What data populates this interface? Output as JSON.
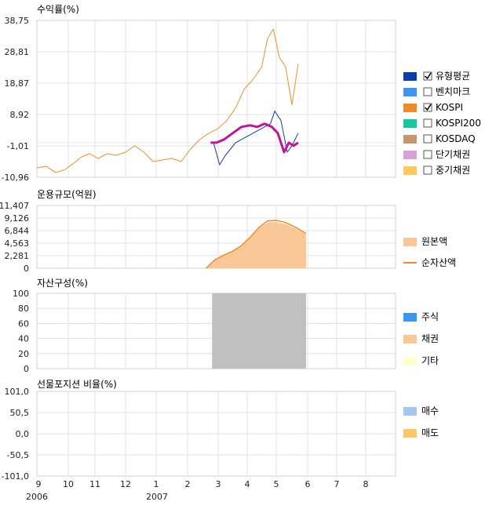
{
  "months": [
    "9",
    "10",
    "11",
    "12",
    "1",
    "2",
    "3",
    "4",
    "5",
    "6",
    "7",
    "8"
  ],
  "years": [
    "2006",
    "2007"
  ],
  "chart_data": [
    {
      "type": "line",
      "title": "수익률(%)",
      "yticks": [
        "38,75",
        "28,81",
        "18,87",
        "8,92",
        "-1,01",
        "-10,96"
      ],
      "ylim": [
        -10.96,
        38.75
      ],
      "legend_placement": "right",
      "legend": [
        {
          "name": "유형평균",
          "color": "#0a3ea8",
          "checkbox": true,
          "checked": true
        },
        {
          "name": "벤치마크",
          "color": "#3c96f0",
          "checkbox": true,
          "checked": false
        },
        {
          "name": "KOSPI",
          "color": "#f08c28",
          "checkbox": true,
          "checked": true
        },
        {
          "name": "KOSPI200",
          "color": "#14c8a0",
          "checkbox": true,
          "checked": false
        },
        {
          "name": "KOSDAQ",
          "color": "#c8966e",
          "checkbox": true,
          "checked": false
        },
        {
          "name": "단기채권",
          "color": "#d7a0d7",
          "checkbox": true,
          "checked": false
        },
        {
          "name": "중기채권",
          "color": "#ffc85a",
          "checkbox": true,
          "checked": false
        }
      ],
      "series": [
        {
          "key": "kospi",
          "color": "#f08c28",
          "width": 1,
          "x": [
            0,
            0.3,
            0.6,
            0.9,
            1.2,
            1.5,
            1.8,
            2.1,
            2.4,
            2.7,
            3,
            3.3,
            3.6,
            3.9,
            4.2,
            4.5,
            4.8,
            5.1,
            5.4,
            5.7,
            6,
            6.3,
            6.6,
            6.9,
            7.2,
            7.5,
            7.7,
            7.9,
            8.1,
            8.3,
            8.5,
            8.7
          ],
          "y": [
            -8,
            -7.5,
            -9.5,
            -8.5,
            -6.5,
            -4.5,
            -3.5,
            -5,
            -3.5,
            -4,
            -3,
            -1,
            -3,
            -6,
            -5.5,
            -5,
            -6,
            -2,
            1,
            3,
            4.5,
            7,
            11,
            17,
            20,
            24,
            33,
            36,
            27,
            24,
            12,
            25
          ]
        },
        {
          "key": "type_avg",
          "color": "#0a3ea8",
          "width": 1,
          "x": [
            5.85,
            6.05,
            6.25,
            6.6,
            6.9,
            7.2,
            7.5,
            7.8,
            7.95,
            8.15,
            8.35,
            8.5,
            8.7
          ],
          "y": [
            0,
            -7,
            -4,
            0,
            1.5,
            3,
            4.5,
            6,
            10,
            7,
            -3,
            -1,
            3
          ]
        },
        {
          "key": "fund",
          "color": "#c0149b",
          "width": 3,
          "x": [
            5.75,
            5.95,
            6.2,
            6.5,
            6.8,
            7.1,
            7.35,
            7.6,
            7.85,
            8.05,
            8.25,
            8.4,
            8.55,
            8.7
          ],
          "y": [
            0,
            0,
            1,
            3,
            5,
            5.5,
            5,
            6,
            5,
            3,
            -3,
            0,
            -1,
            0
          ]
        }
      ]
    },
    {
      "type": "area",
      "title": "운용규모(억원)",
      "yticks": [
        "11,407",
        "9,126",
        "6,844",
        "4,563",
        "2,281",
        "0"
      ],
      "ylim": [
        0,
        11407
      ],
      "legend_placement": "right",
      "legend": [
        {
          "name": "원본액",
          "color": "#fac896",
          "kind": "box"
        },
        {
          "name": "순자산액",
          "color": "#f08c28",
          "kind": "line"
        }
      ],
      "series": [
        {
          "name": "원본액",
          "x": [
            5.6,
            5.9,
            6.2,
            6.5,
            6.8,
            7.1,
            7.4,
            7.7,
            8,
            8.3,
            8.6,
            8.95
          ],
          "y": [
            0,
            1500,
            2300,
            3000,
            4000,
            5500,
            7200,
            8300,
            8400,
            8000,
            7300,
            6100
          ]
        },
        {
          "name": "순자산액",
          "x": [
            5.6,
            5.9,
            6.2,
            6.5,
            6.8,
            7.1,
            7.4,
            7.7,
            8,
            8.3,
            8.6,
            8.95
          ],
          "y": [
            0,
            1550,
            2400,
            3100,
            4100,
            5600,
            7400,
            8600,
            8700,
            8300,
            7500,
            6300
          ]
        }
      ]
    },
    {
      "type": "area",
      "title": "자산구성(%)",
      "yticks": [
        "100",
        "80",
        "60",
        "40",
        "20",
        "0"
      ],
      "ylim": [
        0,
        100
      ],
      "legend_placement": "right",
      "legend": [
        {
          "name": "주식",
          "color": "#3c96f0"
        },
        {
          "name": "채권",
          "color": "#fac896"
        },
        {
          "name": "기타",
          "color": "#ffffc8"
        }
      ],
      "block": {
        "color": "#c0c0c0",
        "x_start": 5.8,
        "x_end": 8.95,
        "value": 100
      }
    },
    {
      "type": "bar",
      "title": "선물포지션 비율(%)",
      "yticks": [
        "101,0",
        "50,5",
        "0,0",
        "-50,5",
        "-101,0"
      ],
      "ylim": [
        -101.0,
        101.0
      ],
      "legend_placement": "right",
      "legend": [
        {
          "name": "매수",
          "color": "#a0c8f0"
        },
        {
          "name": "매도",
          "color": "#fac864"
        }
      ]
    }
  ]
}
